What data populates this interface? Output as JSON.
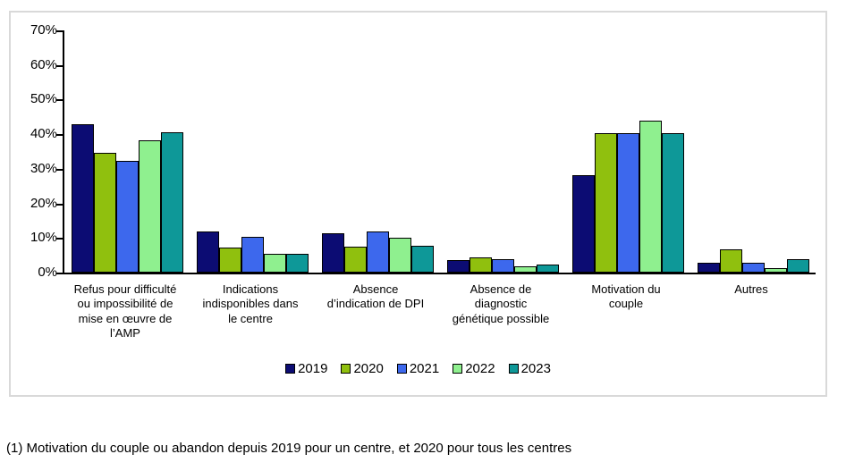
{
  "chart_data": {
    "type": "bar",
    "title": "",
    "xlabel": "",
    "ylabel": "",
    "ylim": [
      0,
      70
    ],
    "ytick_step": 10,
    "ytick_suffix": "%",
    "grid": false,
    "legend_position": "bottom",
    "categories": [
      "Refus pour difficulté\nou impossibilité de\nmise en œuvre de\nl’AMP",
      "Indications\nindisponibles dans\nle centre",
      "Absence\nd’indication de DPI",
      "Absence de\ndiagnostic\ngénétique possible",
      "Motivation du\ncouple",
      "Autres"
    ],
    "series": [
      {
        "name": "2019",
        "color": "#0c0c73",
        "values": [
          43.0,
          12.0,
          11.4,
          3.7,
          28.2,
          2.8
        ]
      },
      {
        "name": "2020",
        "color": "#90c00e",
        "values": [
          34.7,
          7.2,
          7.5,
          4.5,
          40.3,
          6.8
        ]
      },
      {
        "name": "2021",
        "color": "#3d68ed",
        "values": [
          32.2,
          10.3,
          11.9,
          3.8,
          40.3,
          2.8
        ]
      },
      {
        "name": "2022",
        "color": "#8ff08f",
        "values": [
          38.2,
          5.5,
          10.0,
          1.9,
          43.8,
          1.4
        ]
      },
      {
        "name": "2023",
        "color": "#0e9898",
        "values": [
          40.6,
          5.4,
          7.7,
          2.4,
          40.3,
          4.0
        ]
      }
    ]
  },
  "footnote": "(1) Motivation du couple ou abandon depuis 2019 pour un centre, et 2020 pour tous les centres"
}
